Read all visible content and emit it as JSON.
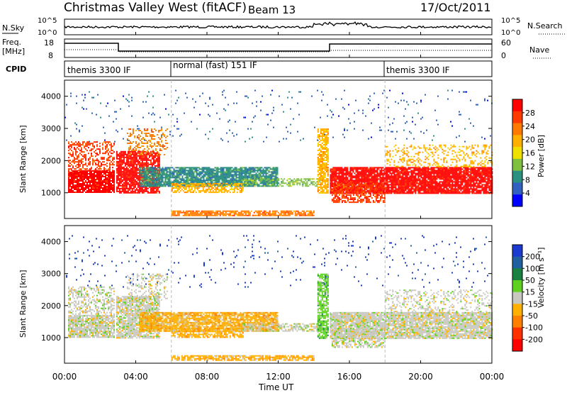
{
  "header": {
    "station": "Christmas Valley West (fitACF)",
    "beam": "Beam 13",
    "date": "17/Oct/2011"
  },
  "top_panels": {
    "nsky_label": "N.Sky",
    "nsearch_label": "N.Search",
    "nsky_ticks": [
      "10^5",
      "10^0"
    ],
    "freq_label_line1": "Freq.",
    "freq_label_line2": "[MHz]",
    "freq_ticks": [
      "18",
      "8"
    ],
    "nave_label": "Nave",
    "nave_ticks": [
      "60",
      "0"
    ],
    "cpid_label": "CPID",
    "cpid_segments": [
      {
        "label": "themis 3300 IF",
        "start_h": 0,
        "end_h": 6
      },
      {
        "label": "normal (fast) 151 IF",
        "start_h": 6,
        "end_h": 18
      },
      {
        "label": "themis 3300 IF",
        "start_h": 18,
        "end_h": 24
      }
    ]
  },
  "chart_data": [
    {
      "type": "heatmap",
      "title": "",
      "xlabel": "Time UT",
      "ylabel": "Slant Range [km]",
      "xlim": [
        0,
        24
      ],
      "ylim": [
        200,
        4500
      ],
      "x_ticks": [
        "00:00",
        "04:00",
        "08:00",
        "12:00",
        "16:00",
        "20:00",
        "00:00"
      ],
      "y_ticks": [
        "1000",
        "2000",
        "3000",
        "4000"
      ],
      "colorbar_label": "Power [dB]",
      "colorbar_ticks": [
        "28",
        "24",
        "20",
        "16",
        "12",
        "8",
        "4"
      ],
      "colorbar_colors": [
        "#ff0000",
        "#ff3a00",
        "#ff7a00",
        "#ffb000",
        "#f0e000",
        "#80c040",
        "#2a9080",
        "#3060c0",
        "#0000ff"
      ]
    },
    {
      "type": "heatmap",
      "title": "",
      "xlabel": "Time UT",
      "ylabel": "Slant Range [km]",
      "xlim": [
        0,
        24
      ],
      "ylim": [
        200,
        4500
      ],
      "x_ticks": [
        "00:00",
        "04:00",
        "08:00",
        "12:00",
        "16:00",
        "20:00",
        "00:00"
      ],
      "y_ticks": [
        "1000",
        "2000",
        "3000",
        "4000"
      ],
      "colorbar_label": "Velocity [m s⁻¹]",
      "colorbar_ticks": [
        "200",
        "100",
        "50",
        "15",
        "-15",
        "-50",
        "-100",
        "-200"
      ],
      "colorbar_colors": [
        "#1a3ad0",
        "#2060a0",
        "#1a8040",
        "#60d020",
        "#c8c8c0",
        "#ffb000",
        "#ff8000",
        "#ff3000",
        "#ff0000"
      ]
    }
  ],
  "footer": {
    "xaxis_label": "Time UT",
    "x_ticks": [
      "00:00",
      "04:00",
      "08:00",
      "12:00",
      "16:00",
      "20:00",
      "00:00"
    ]
  }
}
